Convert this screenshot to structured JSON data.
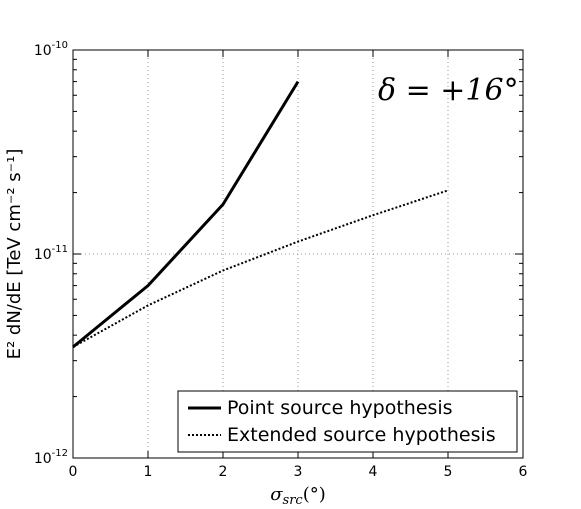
{
  "chart_data": {
    "type": "line",
    "annotation": "δ = +16°",
    "xlabel": "σ_src(°)",
    "ylabel": "E² dN/dE [TeV cm⁻² s⁻¹]",
    "xlim": [
      0,
      6
    ],
    "ylim": [
      1e-12,
      1e-10
    ],
    "yscale": "log",
    "grid": true,
    "legend_position": "bottom-right",
    "x_ticks": [
      "0",
      "1",
      "2",
      "3",
      "4",
      "5",
      "6"
    ],
    "y_ticks": [
      {
        "value": 1e-12,
        "base": "10",
        "exp": "-12"
      },
      {
        "value": 1e-11,
        "base": "10",
        "exp": "-11"
      },
      {
        "value": 1e-10,
        "base": "10",
        "exp": "-10"
      }
    ],
    "series": [
      {
        "name": "Point source hypothesis",
        "style": "solid",
        "color": "#000000",
        "x": [
          0,
          1,
          2,
          3
        ],
        "y": [
          3.5e-12,
          7e-12,
          1.75e-11,
          7e-11
        ]
      },
      {
        "name": "Extended source hypothesis",
        "style": "dotted",
        "color": "#000000",
        "x": [
          0,
          1,
          2,
          3,
          4,
          5
        ],
        "y": [
          3.5e-12,
          5.6e-12,
          8.3e-12,
          1.15e-11,
          1.55e-11,
          2.05e-11
        ]
      }
    ]
  }
}
